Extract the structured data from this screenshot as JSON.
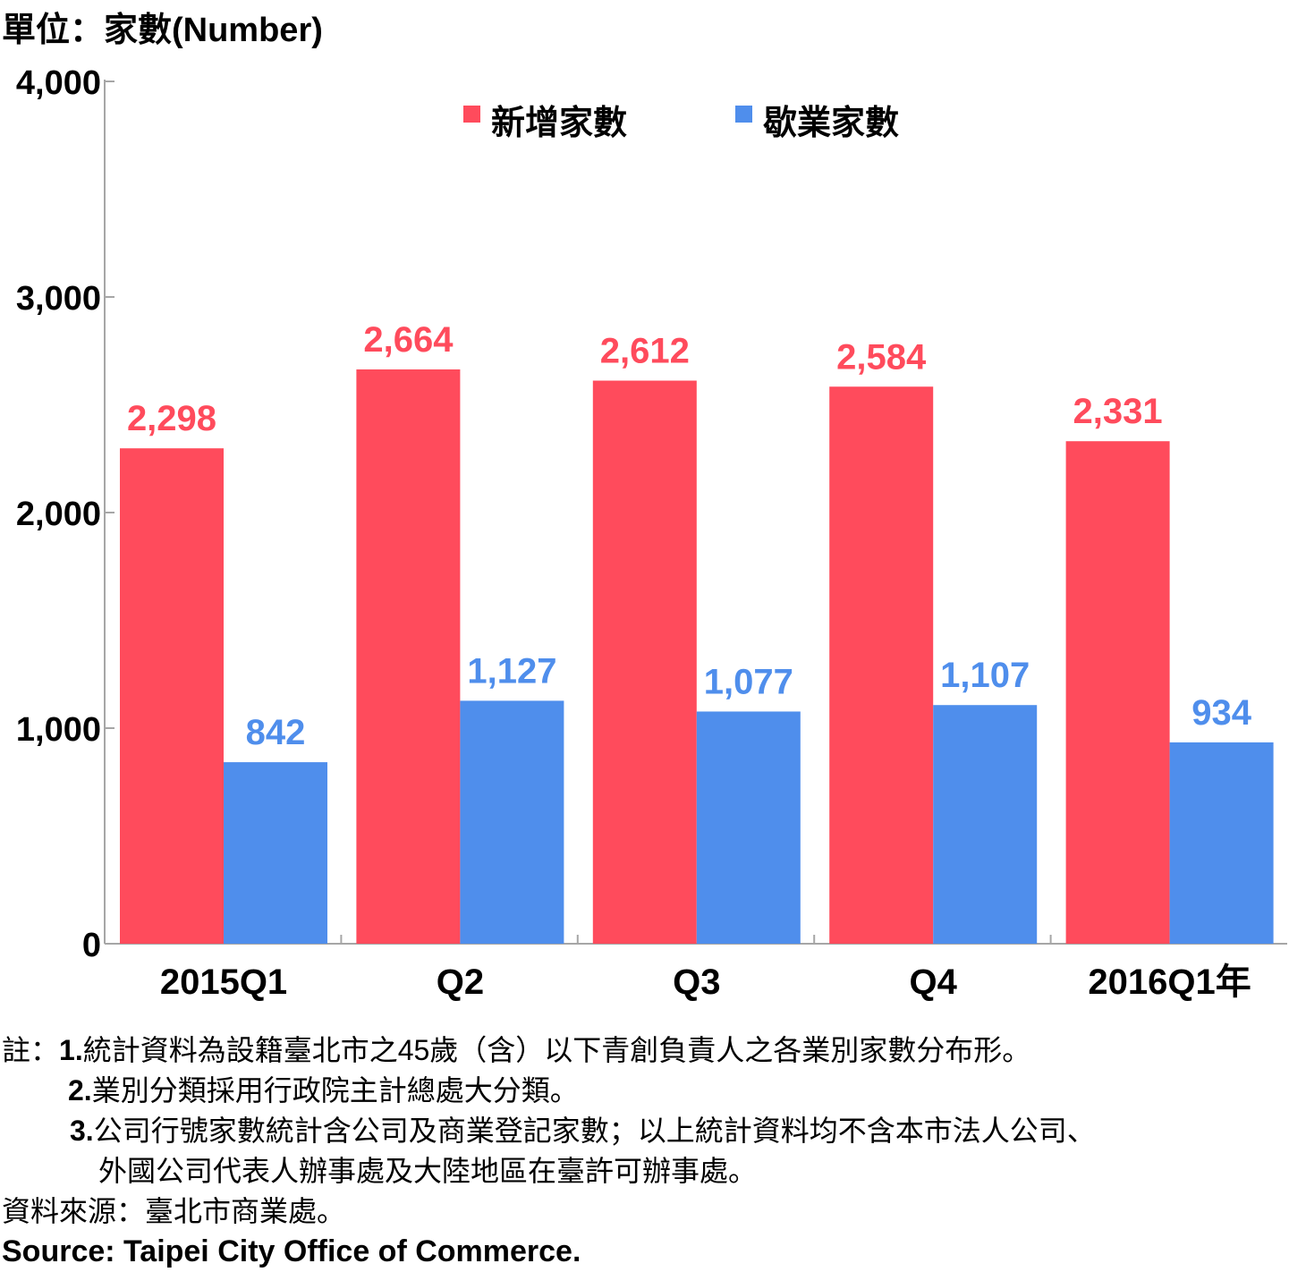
{
  "unit_label": "單位：家數(Number)",
  "chart_data": {
    "type": "bar",
    "categories": [
      "2015Q1",
      "Q2",
      "Q3",
      "Q4",
      "2016Q1年"
    ],
    "series": [
      {
        "name": "新增家數",
        "values": [
          2298,
          2664,
          2612,
          2584,
          2331
        ],
        "labels": [
          "2,298",
          "2,664",
          "2,612",
          "2,584",
          "2,331"
        ],
        "color": "#FF4B5C"
      },
      {
        "name": "歇業家數",
        "values": [
          842,
          1127,
          1077,
          1107,
          934
        ],
        "labels": [
          "842",
          "1,127",
          "1,077",
          "1,107",
          "934"
        ],
        "color": "#4F8EEC"
      }
    ],
    "ylim": [
      0,
      4000
    ],
    "yticks": [
      0,
      1000,
      2000,
      3000,
      4000
    ],
    "ytick_labels": [
      "0",
      "1,000",
      "2,000",
      "3,000",
      "4,000"
    ],
    "legend_position": "top",
    "grid": false
  },
  "notes": {
    "prefix": "註：",
    "n1_num": "1.",
    "n1_text": "統計資料為設籍臺北市之45歲（含）以下青創負責人之各業別家數分布形。",
    "n2_num": "2.",
    "n2_text": "業別分類採用行政院主計總處大分類。",
    "n3_num": "3.",
    "n3_text": "公司行號家數統計含公司及商業登記家數；以上統計資料均不含本市法人公司、",
    "n3_cont": "外國公司代表人辦事處及大陸地區在臺許可辦事處。"
  },
  "source": {
    "zh": "資料來源：臺北市商業處。",
    "en": "Source: Taipei City Office of Commerce."
  }
}
